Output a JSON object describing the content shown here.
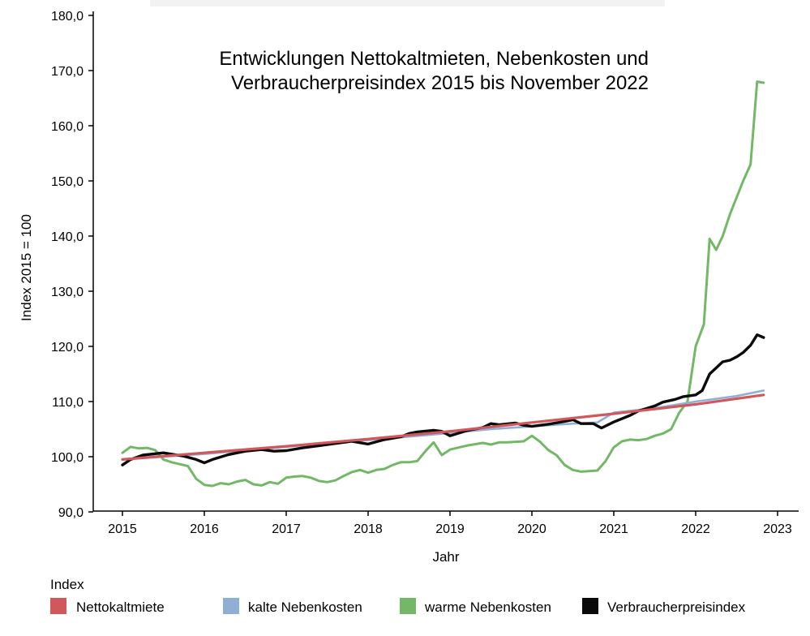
{
  "chart_data": {
    "type": "line",
    "title_lines": [
      "Entwicklungen Nettokaltmieten, Nebenkosten und",
      "Verbraucherpreisindex 2015 bis November 2022"
    ],
    "xlabel": "Jahr",
    "ylabel": "Index  2015 = 100",
    "xlim": [
      2015,
      2023.25
    ],
    "ylim": [
      89,
      181
    ],
    "y_ticks": [
      90,
      100,
      110,
      120,
      130,
      140,
      150,
      160,
      170,
      180
    ],
    "y_tick_labels": [
      "90,0",
      "100,0",
      "110,0",
      "120,0",
      "130,0",
      "140,0",
      "150,0",
      "160,0",
      "170,0",
      "180,0"
    ],
    "x_ticks": [
      2015,
      2016,
      2017,
      2018,
      2019,
      2020,
      2021,
      2022,
      2023
    ],
    "x_tick_labels": [
      "2015",
      "2016",
      "2017",
      "2018",
      "2019",
      "2020",
      "2021",
      "2022",
      "2023"
    ],
    "grid": false,
    "legend": {
      "title": "Index",
      "placement": "bottom"
    },
    "series": [
      {
        "name": "Nettokaltmiete",
        "color": "#d0585c",
        "x": [
          2015.0,
          2016.0,
          2017.0,
          2018.0,
          2019.0,
          2020.0,
          2021.0,
          2022.0,
          2022.83
        ],
        "y": [
          99.5,
          100.7,
          101.9,
          103.2,
          104.6,
          106.2,
          107.8,
          109.5,
          111.2
        ]
      },
      {
        "name": "kalte Nebenkosten",
        "color": "#8fb0d4",
        "x": [
          2015.0,
          2016.0,
          2017.0,
          2018.0,
          2019.0,
          2019.5,
          2020.0,
          2020.5,
          2020.8,
          2021.0,
          2021.5,
          2022.0,
          2022.5,
          2022.83
        ],
        "y": [
          99.5,
          100.5,
          101.8,
          103.0,
          104.3,
          105.0,
          105.5,
          106.0,
          106.2,
          108.0,
          108.8,
          110.0,
          111.0,
          112.0
        ]
      },
      {
        "name": "warme Nebenkosten",
        "color": "#72b866",
        "x": [
          2015.0,
          2015.1,
          2015.2,
          2015.3,
          2015.4,
          2015.5,
          2015.6,
          2015.8,
          2015.9,
          2016.0,
          2016.1,
          2016.2,
          2016.3,
          2016.4,
          2016.5,
          2016.6,
          2016.7,
          2016.8,
          2016.9,
          2017.0,
          2017.1,
          2017.2,
          2017.3,
          2017.4,
          2017.5,
          2017.6,
          2017.7,
          2017.8,
          2017.9,
          2018.0,
          2018.1,
          2018.2,
          2018.3,
          2018.4,
          2018.5,
          2018.6,
          2018.7,
          2018.8,
          2018.9,
          2019.0,
          2019.2,
          2019.4,
          2019.5,
          2019.6,
          2019.7,
          2019.9,
          2020.0,
          2020.1,
          2020.2,
          2020.3,
          2020.4,
          2020.5,
          2020.6,
          2020.7,
          2020.8,
          2020.9,
          2021.0,
          2021.1,
          2021.2,
          2021.3,
          2021.4,
          2021.5,
          2021.6,
          2021.7,
          2021.8,
          2021.9,
          2022.0,
          2022.1,
          2022.17,
          2022.25,
          2022.33,
          2022.42,
          2022.5,
          2022.58,
          2022.67,
          2022.75,
          2022.83
        ],
        "y": [
          100.7,
          101.8,
          101.5,
          101.6,
          101.2,
          99.5,
          99.0,
          98.3,
          96.0,
          94.9,
          94.7,
          95.2,
          95.0,
          95.5,
          95.8,
          95.0,
          94.8,
          95.4,
          95.1,
          96.2,
          96.4,
          96.5,
          96.2,
          95.6,
          95.4,
          95.7,
          96.5,
          97.2,
          97.6,
          97.1,
          97.6,
          97.8,
          98.5,
          99.0,
          99.0,
          99.2,
          101.0,
          102.6,
          100.3,
          101.3,
          102.0,
          102.5,
          102.2,
          102.6,
          102.6,
          102.8,
          103.8,
          102.7,
          101.2,
          100.3,
          98.5,
          97.6,
          97.3,
          97.4,
          97.5,
          99.2,
          101.7,
          102.8,
          103.1,
          103.0,
          103.2,
          103.8,
          104.2,
          105.0,
          108.0,
          110.0,
          120.0,
          124.0,
          139.5,
          137.5,
          140.0,
          144.0,
          147.0,
          150.0,
          153.0,
          168.0,
          167.8
        ]
      },
      {
        "name": "Verbraucherpreisindex",
        "color": "#0a0a0a",
        "x": [
          2015.0,
          2015.1,
          2015.25,
          2015.5,
          2015.75,
          2015.9,
          2016.0,
          2016.1,
          2016.3,
          2016.5,
          2016.7,
          2016.85,
          2017.0,
          2017.2,
          2017.4,
          2017.6,
          2017.8,
          2018.0,
          2018.2,
          2018.4,
          2018.5,
          2018.6,
          2018.8,
          2018.9,
          2019.0,
          2019.2,
          2019.4,
          2019.5,
          2019.6,
          2019.8,
          2019.9,
          2020.0,
          2020.2,
          2020.4,
          2020.5,
          2020.6,
          2020.75,
          2020.85,
          2021.0,
          2021.2,
          2021.3,
          2021.5,
          2021.6,
          2021.75,
          2021.85,
          2022.0,
          2022.08,
          2022.17,
          2022.25,
          2022.33,
          2022.42,
          2022.5,
          2022.58,
          2022.67,
          2022.75,
          2022.83
        ],
        "y": [
          98.5,
          99.5,
          100.3,
          100.7,
          100.1,
          99.5,
          98.9,
          99.5,
          100.4,
          101.0,
          101.3,
          101.0,
          101.1,
          101.6,
          102.0,
          102.4,
          102.8,
          102.3,
          103.1,
          103.6,
          104.2,
          104.5,
          104.8,
          104.6,
          103.8,
          104.7,
          105.3,
          106.0,
          105.8,
          106.1,
          105.7,
          105.5,
          105.9,
          106.4,
          106.7,
          106.0,
          106.0,
          105.2,
          106.3,
          107.5,
          108.3,
          109.2,
          109.9,
          110.4,
          110.9,
          111.2,
          112.0,
          115.0,
          116.1,
          117.2,
          117.5,
          118.1,
          118.9,
          120.2,
          122.1,
          121.6
        ]
      }
    ]
  }
}
